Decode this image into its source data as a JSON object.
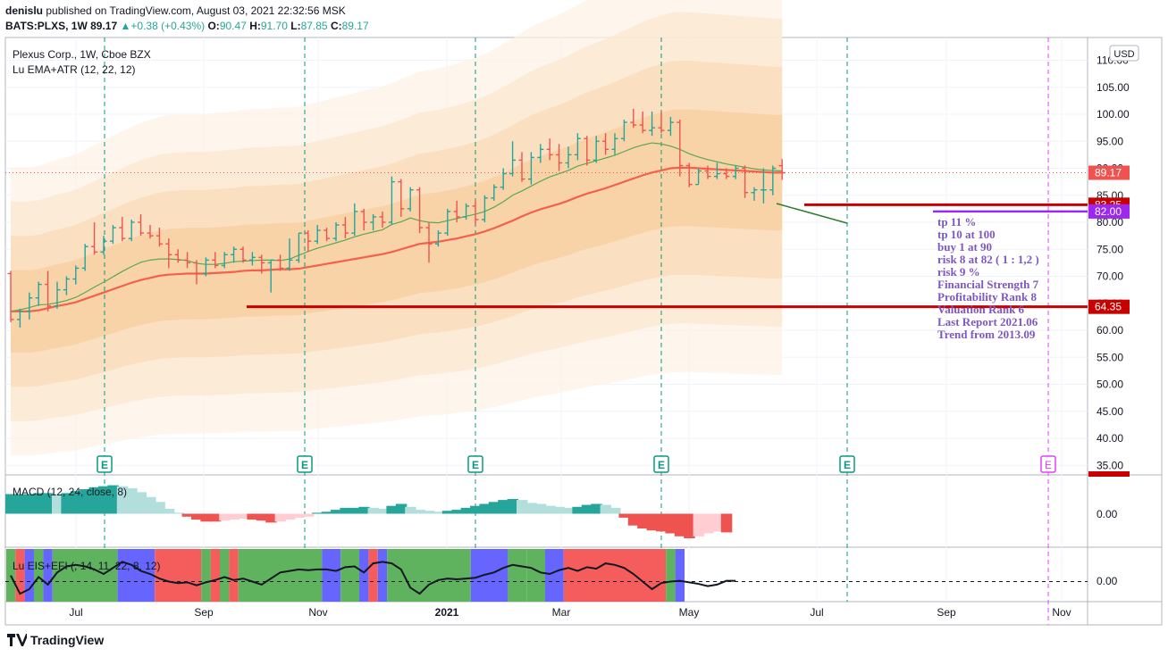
{
  "header": {
    "publisher": "denislu",
    "published_text": "published on TradingView.com, August 03, 2021 22:32:56 MSK",
    "symbol": "BATS:PLXS, 1W",
    "last": "89.17",
    "change": "+0.38 (+0.43%)",
    "o_label": "O:",
    "o": "90.47",
    "h_label": "H:",
    "h": "91.70",
    "l_label": "L:",
    "l": "87.85",
    "c_label": "C:",
    "c": "89.17"
  },
  "legend": {
    "title": "Plexus Corp., 1W, Cboe BZX",
    "indicator1": "Lu EMA+ATR (12, 22, 12)",
    "macd": "MACD (12, 24, close, 8)",
    "eis": "Lu EIS+EFI (, 14, 11, 22, 8, 12)"
  },
  "currency": "USD",
  "colors": {
    "up": "#26a69a",
    "down": "#ef5350",
    "ema_slow": "#f4604a",
    "ema_fast": "#5aa84f",
    "note_text": "#7e57c2",
    "level_red": "#c80000",
    "level_purple": "#9c27f0",
    "earnings": "#089981",
    "future_earnings": "#e040fb",
    "eis_green": "#5fb35f",
    "eis_red": "#f55d5d",
    "eis_blue": "#6666ff"
  },
  "notes": [
    "tp 11 %",
    "tp 10 at 100",
    "buy 1 at 90",
    "risk 8 at 82 ( 1 : 1,2 )",
    "risk 9 %",
    "Financial Strength 7",
    "Profitability Rank 8",
    "Valuation Rank 6",
    "Last Report  2021.06",
    "Trend from  2013.09"
  ],
  "price_badges": [
    {
      "label": "89.17",
      "value": 89.17,
      "color": "#ef5350"
    },
    {
      "label": "83.25",
      "value": 83.25,
      "color": "#c80000"
    },
    {
      "label": "82.00",
      "value": 82.0,
      "color": "#9c27f0"
    },
    {
      "label": "64.35",
      "value": 64.35,
      "color": "#c80000"
    }
  ],
  "earnings_marker": "E",
  "macd_zero_label": "0.00",
  "eis_zero_label": "0.00",
  "branding": "TradingView",
  "chart_data": {
    "type": "candlestick",
    "title": "Plexus Corp., 1W, Cboe BZX",
    "x_tick_labels": [
      "Jul",
      "Sep",
      "Nov",
      "2021",
      "Mar",
      "May",
      "Jul",
      "Sep",
      "Nov"
    ],
    "y_ticks": [
      110.0,
      105.0,
      100.0,
      95.0,
      90.0,
      85.0,
      80.0,
      75.0,
      70.0,
      65.0,
      60.0,
      55.0,
      50.0,
      45.0,
      40.0,
      35.0
    ],
    "ylim": [
      33.5,
      112.5
    ],
    "last_price": 89.17,
    "levels": [
      {
        "value": 83.25,
        "label": "83.25"
      },
      {
        "value": 82.0,
        "label": "82.00"
      },
      {
        "value": 64.35,
        "label": "64.35"
      }
    ],
    "ohlc": [
      [
        70.5,
        71,
        61.5,
        62
      ],
      [
        62,
        64,
        60.5,
        63.5
      ],
      [
        63.5,
        67,
        62,
        66
      ],
      [
        66,
        69,
        64.5,
        68.5
      ],
      [
        68.5,
        71,
        63.5,
        64.5
      ],
      [
        64.5,
        69,
        64,
        67.5
      ],
      [
        67.5,
        70,
        66.5,
        69.5
      ],
      [
        69.5,
        72,
        68.5,
        71.5
      ],
      [
        71.5,
        76,
        71,
        75.5
      ],
      [
        75.5,
        80,
        74,
        74.5
      ],
      [
        74.5,
        77.5,
        74,
        76.5
      ],
      [
        76.5,
        79.5,
        76,
        79
      ],
      [
        79,
        81,
        76.5,
        77
      ],
      [
        77,
        80.5,
        76.5,
        80
      ],
      [
        80,
        81.5,
        77.5,
        78
      ],
      [
        78,
        79.5,
        77,
        77.5
      ],
      [
        77.5,
        79,
        75.5,
        76
      ],
      [
        76,
        77,
        71.5,
        74
      ],
      [
        74,
        75,
        72.5,
        73
      ],
      [
        73,
        74.5,
        71.5,
        72.5
      ],
      [
        72.5,
        73,
        68.5,
        70.5
      ],
      [
        70.5,
        73.5,
        70,
        73
      ],
      [
        73,
        74.5,
        71.5,
        72
      ],
      [
        72,
        74.5,
        71.5,
        74
      ],
      [
        74,
        75.5,
        72.5,
        75
      ],
      [
        75,
        75.5,
        72.5,
        73
      ],
      [
        73,
        74.5,
        72,
        73.5
      ],
      [
        73.5,
        74,
        70.5,
        72.5
      ],
      [
        72.5,
        73,
        67,
        73
      ],
      [
        73,
        74,
        71,
        71.5
      ],
      [
        71.5,
        77,
        71,
        73
      ],
      [
        73,
        78,
        72.5,
        78
      ],
      [
        78,
        78.5,
        74.5,
        76.5
      ],
      [
        76.5,
        79.5,
        76,
        78.5
      ],
      [
        78.5,
        79,
        76.5,
        77
      ],
      [
        77,
        80,
        76.5,
        79.5
      ],
      [
        79.5,
        81,
        77,
        78
      ],
      [
        78,
        83.5,
        77.5,
        82
      ],
      [
        82,
        82.5,
        78.5,
        80
      ],
      [
        80,
        81.5,
        78.5,
        81
      ],
      [
        81,
        82,
        79,
        80
      ],
      [
        80,
        88.5,
        79.5,
        87.5
      ],
      [
        87.5,
        88,
        81,
        82.5
      ],
      [
        82.5,
        86.5,
        82,
        86
      ],
      [
        86,
        86.5,
        78,
        79
      ],
      [
        79,
        80,
        72.5,
        76
      ],
      [
        76,
        78.5,
        75.5,
        78
      ],
      [
        78,
        82.5,
        77.5,
        82
      ],
      [
        82,
        84,
        80,
        81
      ],
      [
        81,
        83.5,
        80.5,
        83
      ],
      [
        83,
        84,
        79.5,
        80.5
      ],
      [
        80.5,
        85,
        80,
        84.5
      ],
      [
        84.5,
        87,
        84,
        86.5
      ],
      [
        86.5,
        90,
        86,
        89
      ],
      [
        89,
        95,
        88.5,
        91.5
      ],
      [
        91.5,
        93,
        87.5,
        88
      ],
      [
        88,
        93,
        87,
        92
      ],
      [
        92,
        94.5,
        91,
        93.5
      ],
      [
        93.5,
        95.5,
        91.5,
        92.5
      ],
      [
        92.5,
        94.5,
        89.5,
        91
      ],
      [
        91,
        94,
        90,
        92.5
      ],
      [
        92.5,
        96.5,
        91.5,
        95.5
      ],
      [
        95.5,
        96,
        90.5,
        91.5
      ],
      [
        91.5,
        96,
        91,
        95
      ],
      [
        95,
        96.5,
        92.5,
        93.5
      ],
      [
        93.5,
        96.5,
        92.5,
        95.5
      ],
      [
        95.5,
        99,
        95,
        98.5
      ],
      [
        98.5,
        101,
        97.5,
        98
      ],
      [
        98,
        100.5,
        96.5,
        97
      ],
      [
        97,
        100.5,
        96,
        97.5
      ],
      [
        97.5,
        100.5,
        96.5,
        97
      ],
      [
        97,
        99.5,
        96,
        98.5
      ],
      [
        98.5,
        99,
        88.5,
        90.5
      ],
      [
        90.5,
        91,
        86.5,
        87
      ],
      [
        87,
        90,
        87,
        89.5
      ],
      [
        89.5,
        90.5,
        88,
        88.5
      ],
      [
        88.5,
        91,
        88,
        89
      ],
      [
        89,
        90,
        88,
        88.5
      ],
      [
        88.5,
        90.5,
        88,
        90
      ],
      [
        90,
        90.5,
        84.5,
        85.5
      ],
      [
        85.5,
        86.5,
        84,
        86
      ],
      [
        86,
        90,
        83.5,
        86
      ],
      [
        86,
        90.5,
        85,
        90
      ],
      [
        90.47,
        91.7,
        87.85,
        89.17
      ]
    ],
    "ema_slow": [
      63.5,
      63.5,
      63.5,
      63.7,
      64.1,
      64.5,
      64.8,
      65.2,
      65.8,
      66.4,
      67.0,
      67.6,
      68.2,
      68.8,
      69.3,
      69.7,
      70.1,
      70.3,
      70.4,
      70.5,
      70.5,
      70.5,
      70.6,
      70.7,
      70.8,
      71.0,
      71.1,
      71.1,
      71.2,
      71.3,
      71.3,
      71.4,
      71.7,
      72.0,
      72.3,
      72.6,
      72.9,
      73.2,
      73.5,
      73.8,
      74.1,
      74.5,
      75.0,
      75.5,
      76.0,
      76.2,
      76.4,
      76.7,
      77.0,
      77.4,
      77.8,
      78.3,
      78.9,
      79.6,
      80.3,
      81.1,
      81.8,
      82.4,
      82.9,
      83.4,
      84.0,
      84.7,
      85.3,
      85.8,
      86.3,
      86.9,
      87.5,
      88.1,
      88.7,
      89.2,
      89.6,
      90.0,
      90.1,
      90.1,
      90.0,
      89.9,
      89.8,
      89.7,
      89.6,
      89.5,
      89.4,
      89.3,
      89.2,
      89.2
    ],
    "ema_fast": [
      63.5,
      63.8,
      64.2,
      64.7,
      64.8,
      65.1,
      65.5,
      66.1,
      67.0,
      68.0,
      68.9,
      69.9,
      70.9,
      71.8,
      72.6,
      73.0,
      73.2,
      73.2,
      73.1,
      72.9,
      72.4,
      72.2,
      72.2,
      72.4,
      72.7,
      72.8,
      72.9,
      73.0,
      73.0,
      72.9,
      73.2,
      73.9,
      74.6,
      75.2,
      75.7,
      76.2,
      76.7,
      77.3,
      77.8,
      78.2,
      78.6,
      79.6,
      80.1,
      80.8,
      80.3,
      80.0,
      79.9,
      80.3,
      80.7,
      81.1,
      81.5,
      82.0,
      82.8,
      83.8,
      85.0,
      85.8,
      86.7,
      87.6,
      88.4,
      89.0,
      89.6,
      90.4,
      90.9,
      91.4,
      91.9,
      92.4,
      93.1,
      93.8,
      94.3,
      94.7,
      94.5,
      94.1,
      93.5,
      92.7,
      92.1,
      91.6,
      91.2,
      90.8,
      90.5,
      90.2,
      89.9,
      89.7,
      89.6,
      89.5
    ],
    "macd_hist": [
      1.0,
      1.0,
      1.0,
      1.05,
      1.05,
      1.0,
      1.05,
      1.15,
      1.25,
      1.35,
      1.4,
      1.45,
      1.4,
      1.3,
      1.1,
      0.85,
      0.6,
      0.25,
      0.05,
      -0.15,
      -0.3,
      -0.4,
      -0.4,
      -0.35,
      -0.3,
      -0.25,
      -0.3,
      -0.35,
      -0.45,
      -0.4,
      -0.3,
      -0.2,
      -0.15,
      0.05,
      0.1,
      0.2,
      0.3,
      0.3,
      0.35,
      0.3,
      0.25,
      0.4,
      0.5,
      0.35,
      0.2,
      0.15,
      0.1,
      0.15,
      0.2,
      0.3,
      0.4,
      0.5,
      0.6,
      0.7,
      0.75,
      0.7,
      0.55,
      0.5,
      0.4,
      0.35,
      0.3,
      0.35,
      0.45,
      0.5,
      0.45,
      0.3,
      -0.2,
      -0.6,
      -0.75,
      -0.85,
      -0.9,
      -1.0,
      -1.15,
      -1.25,
      -1.15,
      -1.0,
      -0.9,
      -0.95
    ],
    "eis_line": [
      0.4,
      -0.8,
      -0.5,
      0.3,
      -0.2,
      0.6,
      1.0,
      1.1,
      1.0,
      0.8,
      0.5,
      0.9,
      1.3,
      1.1,
      0.7,
      0.5,
      0.2,
      0.0,
      -0.1,
      -0.05,
      -0.25,
      -0.05,
      0.1,
      0.3,
      0.1,
      0.2,
      0.0,
      -0.2,
      0.2,
      0.6,
      0.7,
      0.8,
      0.75,
      0.8,
      0.8,
      0.7,
      0.95,
      1.0,
      0.6,
      1.2,
      1.3,
      1.2,
      0.8,
      -0.4,
      -0.8,
      -0.2,
      0.1,
      0.2,
      0.15,
      0.2,
      0.25,
      0.45,
      0.6,
      0.9,
      1.1,
      1.0,
      0.9,
      0.6,
      0.5,
      0.75,
      0.9,
      0.7,
      0.95,
      0.85,
      1.2,
      1.1,
      0.9,
      0.5,
      0.0,
      -0.5,
      -0.1,
      0.0,
      0.05,
      -0.05,
      -0.15,
      -0.3,
      -0.2,
      0.05,
      0.05
    ],
    "eis_states": [
      [
        "green",
        1
      ],
      [
        "red",
        1
      ],
      [
        "blue",
        1
      ],
      [
        "green",
        1
      ],
      [
        "blue",
        1
      ],
      [
        "green",
        7
      ],
      [
        "blue",
        4
      ],
      [
        "red",
        5
      ],
      [
        "green",
        1
      ],
      [
        "red",
        1
      ],
      [
        "green",
        1
      ],
      [
        "red",
        1
      ],
      [
        "green",
        9
      ],
      [
        "blue",
        2
      ],
      [
        "green",
        2
      ],
      [
        "blue",
        1
      ],
      [
        "red",
        1
      ],
      [
        "blue",
        1
      ],
      [
        "green",
        9
      ],
      [
        "blue",
        4
      ],
      [
        "green",
        2
      ],
      [
        "green",
        2
      ],
      [
        "blue",
        2
      ],
      [
        "red",
        8
      ],
      [
        "red",
        3
      ],
      [
        "green",
        1
      ],
      [
        "blue",
        1
      ]
    ]
  }
}
